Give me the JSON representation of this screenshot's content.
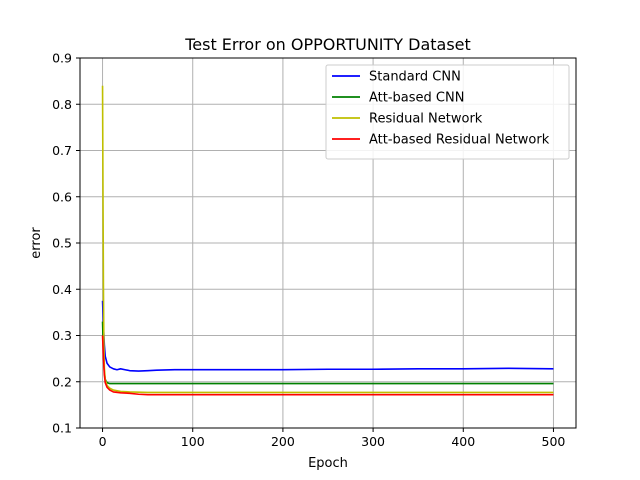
{
  "chart_data": {
    "type": "line",
    "title": "Test Error on OPPORTUNITY Dataset",
    "xlabel": "Epoch",
    "ylabel": "error",
    "xlim": [
      -25,
      525
    ],
    "ylim": [
      0.1,
      0.9
    ],
    "xticks": [
      0,
      100,
      200,
      300,
      400,
      500
    ],
    "yticks": [
      0.1,
      0.2,
      0.3,
      0.4,
      0.5,
      0.6,
      0.7,
      0.8,
      0.9
    ],
    "grid": true,
    "legend_position": "top-right",
    "series": [
      {
        "name": "Standard CNN",
        "color": "#0000ff",
        "x": [
          0,
          1,
          2,
          3,
          5,
          8,
          12,
          16,
          20,
          25,
          30,
          40,
          50,
          60,
          80,
          100,
          120,
          150,
          180,
          200,
          250,
          300,
          350,
          400,
          450,
          500
        ],
        "values": [
          0.375,
          0.32,
          0.28,
          0.255,
          0.24,
          0.232,
          0.228,
          0.226,
          0.228,
          0.226,
          0.224,
          0.223,
          0.224,
          0.225,
          0.226,
          0.226,
          0.226,
          0.226,
          0.226,
          0.226,
          0.227,
          0.227,
          0.228,
          0.228,
          0.229,
          0.228
        ]
      },
      {
        "name": "Att-based CNN",
        "color": "#008000",
        "x": [
          0,
          1,
          2,
          3,
          5,
          8,
          12,
          20,
          30,
          50,
          100,
          200,
          300,
          400,
          500
        ],
        "values": [
          0.33,
          0.26,
          0.22,
          0.205,
          0.198,
          0.196,
          0.196,
          0.196,
          0.196,
          0.196,
          0.196,
          0.196,
          0.196,
          0.196,
          0.196
        ]
      },
      {
        "name": "Residual Network",
        "color": "#bfbf00",
        "x": [
          0,
          0.5,
          1,
          1.5,
          2,
          3,
          5,
          8,
          12,
          20,
          30,
          50,
          100,
          200,
          300,
          400,
          500
        ],
        "values": [
          0.84,
          0.6,
          0.4,
          0.28,
          0.23,
          0.205,
          0.192,
          0.186,
          0.182,
          0.179,
          0.178,
          0.177,
          0.177,
          0.177,
          0.177,
          0.177,
          0.177
        ]
      },
      {
        "name": "Att-based Residual Network",
        "color": "#ff0000",
        "x": [
          0,
          1,
          2,
          3,
          5,
          8,
          12,
          20,
          30,
          40,
          50,
          100,
          200,
          300,
          400,
          500
        ],
        "values": [
          0.3,
          0.25,
          0.215,
          0.198,
          0.188,
          0.182,
          0.178,
          0.176,
          0.175,
          0.173,
          0.172,
          0.172,
          0.172,
          0.172,
          0.172,
          0.172
        ]
      }
    ]
  }
}
